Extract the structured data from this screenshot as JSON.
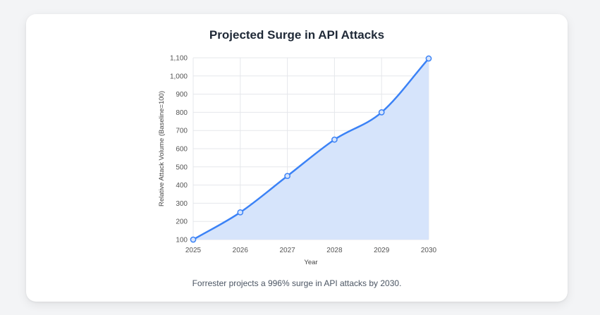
{
  "card": {
    "caption": "Forrester projects a 996% surge in API attacks by 2030."
  },
  "colors": {
    "line": "#3b82f6",
    "fill": "#d6e4fb",
    "grid": "#e5e7eb"
  },
  "chart_data": {
    "type": "area",
    "title": "Projected Surge in API Attacks",
    "xlabel": "Year",
    "ylabel": "Relative Attack Volume (Baseline=100)",
    "x": [
      "2025",
      "2026",
      "2027",
      "2028",
      "2029",
      "2030"
    ],
    "series": [
      {
        "values": [
          100,
          250,
          450,
          650,
          800,
          1096
        ]
      }
    ],
    "ylim": [
      100,
      1100
    ],
    "yticks": [
      100,
      200,
      300,
      400,
      500,
      600,
      700,
      800,
      900,
      1000,
      1100
    ],
    "ytick_labels": [
      "100",
      "200",
      "300",
      "400",
      "500",
      "600",
      "700",
      "800",
      "900",
      "1,000",
      "1,100"
    ],
    "grid": true,
    "legend": "none"
  }
}
